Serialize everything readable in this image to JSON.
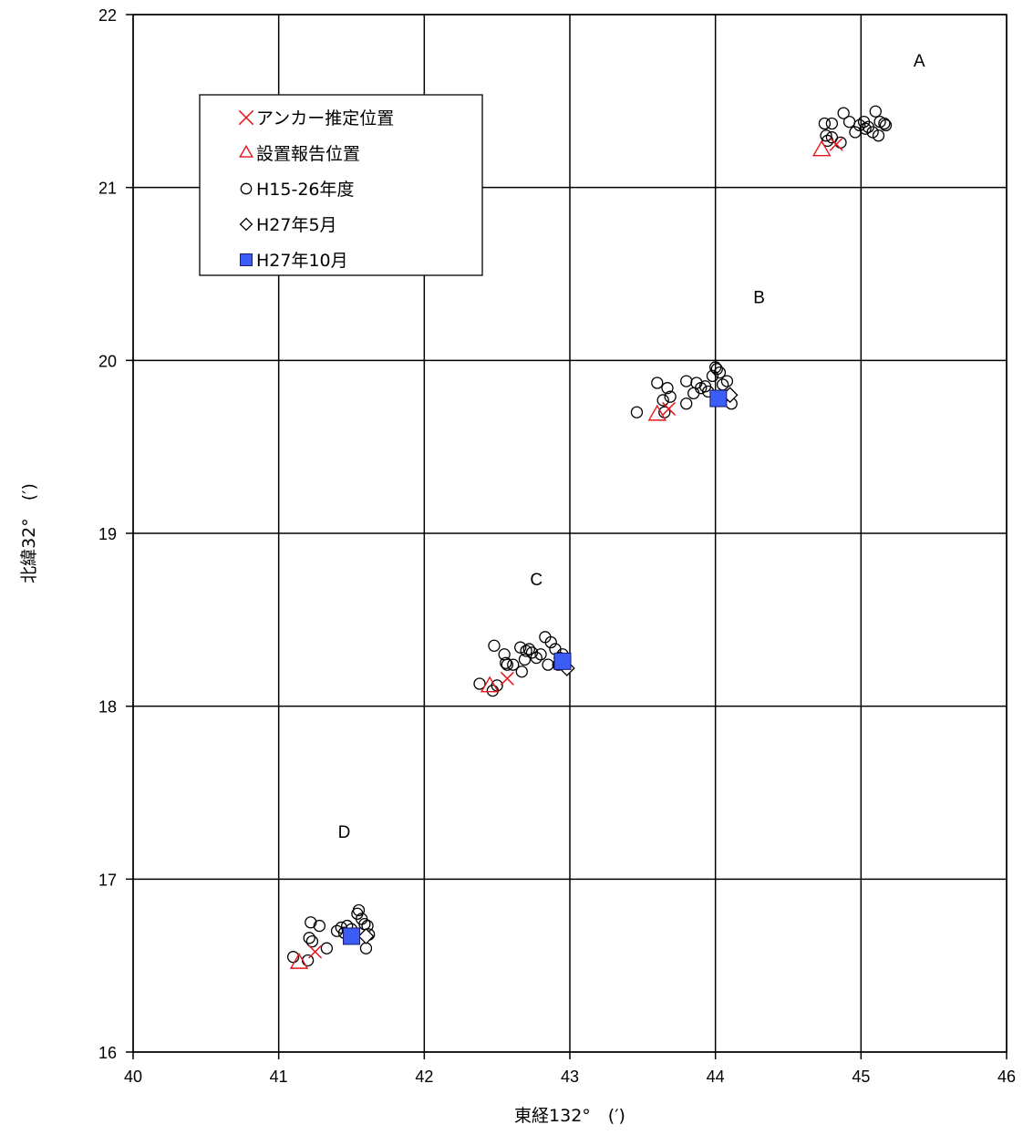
{
  "chart_data": {
    "type": "scatter",
    "xlabel": "東経132°　(′)",
    "ylabel": "北緯32°　(′)",
    "xlim": [
      40,
      46
    ],
    "ylim": [
      16,
      22
    ],
    "x_ticks": [
      "40",
      "41",
      "42",
      "43",
      "44",
      "45",
      "46"
    ],
    "y_ticks": [
      "16",
      "17",
      "18",
      "19",
      "20",
      "21",
      "22"
    ],
    "grid": true,
    "legend_position": "upper-left",
    "site_labels": [
      {
        "text": "A",
        "x": 45.4,
        "y": 21.7
      },
      {
        "text": "B",
        "x": 44.3,
        "y": 20.33
      },
      {
        "text": "C",
        "x": 42.77,
        "y": 18.7
      },
      {
        "text": "D",
        "x": 41.45,
        "y": 17.24
      }
    ],
    "series": [
      {
        "name": "アンカー推定位置",
        "marker": "x",
        "color": "#e8141c",
        "points": [
          [
            44.83,
            21.25
          ],
          [
            43.68,
            19.72
          ],
          [
            42.57,
            18.16
          ],
          [
            41.25,
            16.58
          ]
        ]
      },
      {
        "name": "設置報告位置",
        "marker": "triangle",
        "color": "#e8141c",
        "points": [
          [
            44.73,
            21.22
          ],
          [
            43.6,
            19.69
          ],
          [
            42.45,
            18.12
          ],
          [
            41.14,
            16.52
          ]
        ]
      },
      {
        "name": "H15-26年度",
        "marker": "circle",
        "color": "#000000",
        "points": [
          [
            44.75,
            21.37
          ],
          [
            44.8,
            21.37
          ],
          [
            44.88,
            21.43
          ],
          [
            44.92,
            21.38
          ],
          [
            44.96,
            21.32
          ],
          [
            44.99,
            21.36
          ],
          [
            45.02,
            21.38
          ],
          [
            45.05,
            21.35
          ],
          [
            45.08,
            21.32
          ],
          [
            45.1,
            21.44
          ],
          [
            45.12,
            21.3
          ],
          [
            45.13,
            21.38
          ],
          [
            45.16,
            21.37
          ],
          [
            45.17,
            21.36
          ],
          [
            44.77,
            21.27
          ],
          [
            44.8,
            21.29
          ],
          [
            44.76,
            21.3
          ],
          [
            44.86,
            21.26
          ],
          [
            45.03,
            21.34
          ],
          [
            43.46,
            19.7
          ],
          [
            43.6,
            19.87
          ],
          [
            43.64,
            19.77
          ],
          [
            43.67,
            19.84
          ],
          [
            43.69,
            19.79
          ],
          [
            43.65,
            19.7
          ],
          [
            43.8,
            19.75
          ],
          [
            43.8,
            19.88
          ],
          [
            43.85,
            19.81
          ],
          [
            43.87,
            19.87
          ],
          [
            43.9,
            19.84
          ],
          [
            43.93,
            19.85
          ],
          [
            43.95,
            19.82
          ],
          [
            43.98,
            19.91
          ],
          [
            44.0,
            19.96
          ],
          [
            44.01,
            19.95
          ],
          [
            44.03,
            19.93
          ],
          [
            44.05,
            19.86
          ],
          [
            44.08,
            19.88
          ],
          [
            44.11,
            19.75
          ],
          [
            42.38,
            18.13
          ],
          [
            42.47,
            18.09
          ],
          [
            42.5,
            18.12
          ],
          [
            42.48,
            18.35
          ],
          [
            42.55,
            18.3
          ],
          [
            42.56,
            18.25
          ],
          [
            42.57,
            18.24
          ],
          [
            42.61,
            18.24
          ],
          [
            42.66,
            18.34
          ],
          [
            42.67,
            18.2
          ],
          [
            42.69,
            18.27
          ],
          [
            42.7,
            18.32
          ],
          [
            42.72,
            18.33
          ],
          [
            42.74,
            18.31
          ],
          [
            42.77,
            18.28
          ],
          [
            42.8,
            18.3
          ],
          [
            42.83,
            18.4
          ],
          [
            42.85,
            18.24
          ],
          [
            42.87,
            18.37
          ],
          [
            42.9,
            18.33
          ],
          [
            42.93,
            18.28
          ],
          [
            42.95,
            18.3
          ],
          [
            42.92,
            18.24
          ],
          [
            41.1,
            16.55
          ],
          [
            41.2,
            16.53
          ],
          [
            41.22,
            16.75
          ],
          [
            41.21,
            16.66
          ],
          [
            41.23,
            16.64
          ],
          [
            41.28,
            16.73
          ],
          [
            41.33,
            16.6
          ],
          [
            41.4,
            16.7
          ],
          [
            41.43,
            16.72
          ],
          [
            41.45,
            16.69
          ],
          [
            41.47,
            16.73
          ],
          [
            41.5,
            16.71
          ],
          [
            41.54,
            16.8
          ],
          [
            41.55,
            16.82
          ],
          [
            41.57,
            16.77
          ],
          [
            41.59,
            16.74
          ],
          [
            41.6,
            16.6
          ],
          [
            41.61,
            16.73
          ],
          [
            41.62,
            16.68
          ]
        ]
      },
      {
        "name": "H27年5月",
        "marker": "diamond",
        "color": "#000000",
        "points": [
          [
            44.1,
            19.8
          ],
          [
            42.98,
            18.22
          ],
          [
            41.6,
            16.67
          ]
        ]
      },
      {
        "name": "H27年10月",
        "marker": "square",
        "color": "#3b5cf5",
        "points": [
          [
            44.02,
            19.78
          ],
          [
            42.95,
            18.26
          ],
          [
            41.5,
            16.67
          ]
        ]
      }
    ]
  }
}
